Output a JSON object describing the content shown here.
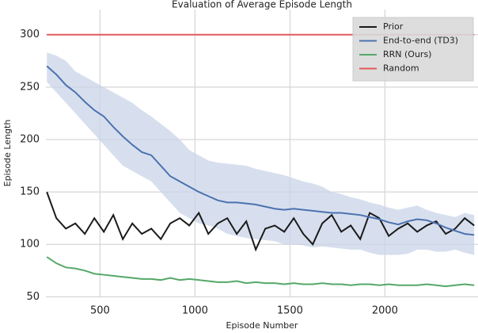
{
  "chart_data": {
    "type": "line",
    "title": "Evaluation of Average Episode Length",
    "xlabel": "Episode Number",
    "ylabel": "Episode Length",
    "x": [
      220,
      270,
      320,
      370,
      420,
      470,
      520,
      570,
      620,
      670,
      720,
      770,
      820,
      870,
      920,
      970,
      1020,
      1070,
      1120,
      1170,
      1220,
      1270,
      1320,
      1370,
      1420,
      1470,
      1520,
      1570,
      1620,
      1670,
      1720,
      1770,
      1820,
      1870,
      1920,
      1970,
      2020,
      2070,
      2120,
      2170,
      2220,
      2270,
      2320,
      2370,
      2420,
      2470
    ],
    "series": [
      {
        "name": "Prior",
        "color": "#1a1a1a",
        "values": [
          150,
          125,
          115,
          120,
          110,
          125,
          112,
          128,
          105,
          120,
          110,
          115,
          105,
          120,
          125,
          118,
          130,
          110,
          120,
          125,
          110,
          122,
          95,
          115,
          118,
          112,
          125,
          110,
          100,
          120,
          128,
          112,
          118,
          105,
          130,
          125,
          108,
          115,
          120,
          112,
          118,
          122,
          110,
          115,
          125,
          118
        ]
      },
      {
        "name": "End-to-end (TD3)",
        "color": "#4c72b0",
        "band_color": "#c9d4e8",
        "values": [
          270,
          262,
          252,
          245,
          236,
          228,
          222,
          212,
          203,
          195,
          188,
          185,
          175,
          165,
          160,
          155,
          150,
          146,
          142,
          140,
          140,
          139,
          138,
          136,
          134,
          133,
          134,
          133,
          132,
          131,
          130,
          130,
          129,
          128,
          126,
          124,
          121,
          119,
          122,
          124,
          123,
          120,
          116,
          113,
          110,
          109
        ],
        "band_upper": [
          283,
          280,
          275,
          265,
          260,
          255,
          250,
          245,
          240,
          235,
          228,
          222,
          215,
          208,
          200,
          190,
          185,
          180,
          178,
          177,
          176,
          175,
          172,
          170,
          168,
          166,
          163,
          160,
          158,
          155,
          150,
          148,
          145,
          143,
          140,
          138,
          135,
          133,
          135,
          137,
          133,
          130,
          128,
          126,
          130,
          128
        ],
        "band_lower": [
          255,
          245,
          235,
          225,
          215,
          205,
          195,
          185,
          175,
          170,
          165,
          160,
          150,
          140,
          130,
          125,
          120,
          118,
          115,
          110,
          108,
          106,
          105,
          104,
          103,
          100,
          100,
          99,
          97,
          98,
          97,
          96,
          95,
          95,
          92,
          90,
          90,
          90,
          91,
          95,
          95,
          93,
          93,
          95,
          92,
          90
        ]
      },
      {
        "name": "RRN (Ours)",
        "color": "#55a868",
        "values": [
          88,
          82,
          78,
          77,
          75,
          72,
          71,
          70,
          69,
          68,
          67,
          67,
          66,
          68,
          66,
          67,
          66,
          65,
          64,
          64,
          65,
          63,
          64,
          63,
          63,
          62,
          63,
          62,
          62,
          63,
          62,
          62,
          61,
          62,
          62,
          61,
          62,
          61,
          61,
          61,
          62,
          61,
          60,
          61,
          62,
          61
        ]
      },
      {
        "name": "Random",
        "color": "#e05a5a",
        "values": [
          300,
          300,
          300,
          300,
          300,
          300,
          300,
          300,
          300,
          300,
          300,
          300,
          300,
          300,
          300,
          300,
          300,
          300,
          300,
          300,
          300,
          300,
          300,
          300,
          300,
          300,
          300,
          300,
          300,
          300,
          300,
          300,
          300,
          300,
          300,
          300,
          300,
          300,
          300,
          300,
          300,
          300,
          300,
          300,
          300,
          300
        ]
      }
    ],
    "xlim": [
      215,
      2490
    ],
    "ylim": [
      49.5,
      324
    ],
    "xticks": [
      500,
      1000,
      1500,
      2000
    ],
    "yticks": [
      50,
      100,
      150,
      200,
      250,
      300
    ],
    "grid": true,
    "legend": "upper right"
  }
}
